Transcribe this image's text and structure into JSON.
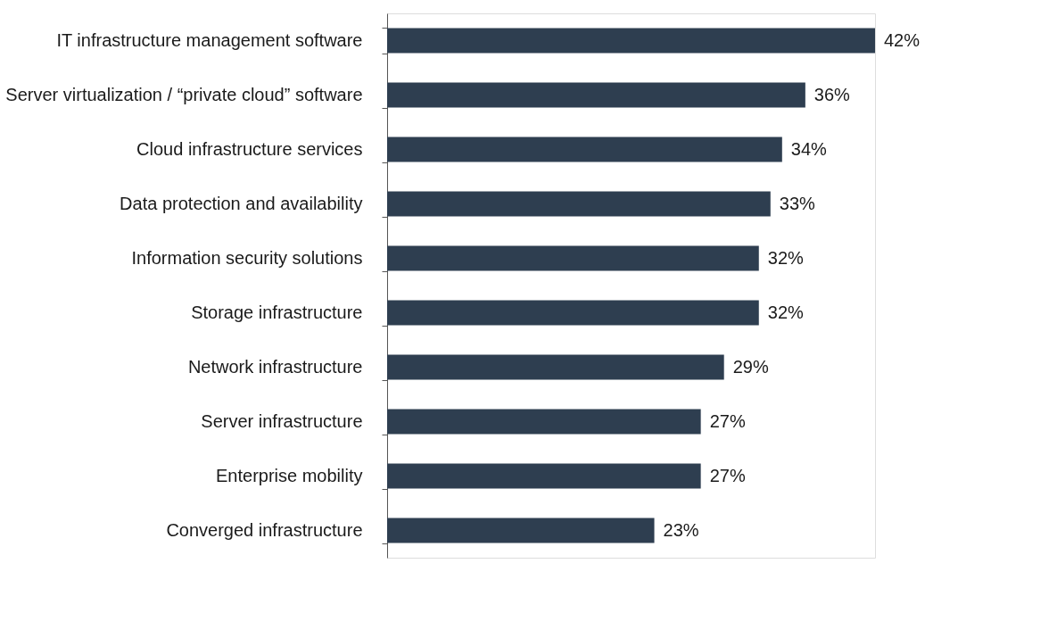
{
  "chart_data": {
    "type": "bar",
    "orientation": "horizontal",
    "categories": [
      "IT infrastructure management software",
      "Server virtualization / “private cloud” software",
      "Cloud infrastructure services",
      "Data protection and availability",
      "Information security solutions",
      "Storage infrastructure",
      "Network infrastructure",
      "Server infrastructure",
      "Enterprise mobility",
      "Converged infrastructure"
    ],
    "values": [
      42,
      36,
      34,
      33,
      32,
      32,
      29,
      27,
      27,
      23
    ],
    "value_labels": [
      "42%",
      "36%",
      "34%",
      "33%",
      "32%",
      "32%",
      "29%",
      "27%",
      "27%",
      "23%"
    ],
    "color": "#2e3e50"
  }
}
